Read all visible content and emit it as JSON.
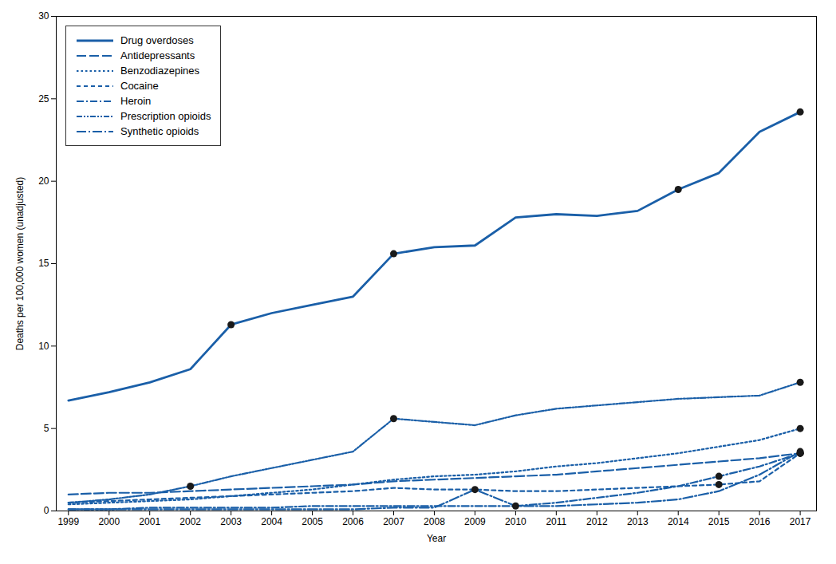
{
  "chart_data": {
    "type": "line",
    "x": [
      1999,
      2000,
      2001,
      2002,
      2003,
      2004,
      2005,
      2006,
      2007,
      2008,
      2009,
      2010,
      2011,
      2012,
      2013,
      2014,
      2015,
      2016,
      2017
    ],
    "xlabel": "Year",
    "ylabel": "Deaths per 100,000 women (unadjusted)",
    "xlim": [
      1998.7,
      2017.4
    ],
    "xticks": [
      1999,
      2000,
      2001,
      2002,
      2003,
      2004,
      2005,
      2006,
      2007,
      2008,
      2009,
      2010,
      2011,
      2012,
      2013,
      2014,
      2015,
      2016,
      2017
    ],
    "ylim": [
      0,
      30
    ],
    "yticks": [
      0,
      5,
      10,
      15,
      20,
      25,
      30
    ],
    "legend": "upper left",
    "series": [
      {
        "name": "Drug overdoses",
        "color": "#1a5fa8",
        "line_style": "solid",
        "values": [
          6.7,
          7.2,
          7.8,
          8.6,
          11.3,
          12.0,
          12.5,
          13.0,
          15.6,
          16.0,
          16.1,
          17.8,
          18.0,
          17.9,
          18.2,
          19.5,
          20.5,
          23.0,
          24.2
        ],
        "marker_points": {
          "x": [
            2003,
            2007,
            2014,
            2017
          ],
          "values": [
            11.3,
            15.6,
            19.5,
            24.2
          ],
          "color": "#1a1a1a"
        }
      },
      {
        "name": "Antidepressants",
        "color": "#1a5fa8",
        "line_style": "longdash",
        "values": [
          1.0,
          1.1,
          1.1,
          1.2,
          1.3,
          1.4,
          1.5,
          1.6,
          1.8,
          1.9,
          2.0,
          2.1,
          2.2,
          2.4,
          2.6,
          2.8,
          3.0,
          3.2,
          3.5
        ],
        "marker_points": {
          "x": [
            2017
          ],
          "values": [
            3.5
          ],
          "color": "#1a1a1a"
        }
      },
      {
        "name": "Benzodiazepines",
        "color": "#1a5fa8",
        "line_style": "dotted",
        "values": [
          0.4,
          0.5,
          0.6,
          0.7,
          0.9,
          1.1,
          1.3,
          1.6,
          1.9,
          2.1,
          2.2,
          2.4,
          2.7,
          2.9,
          3.2,
          3.5,
          3.9,
          4.3,
          5.0
        ],
        "marker_points": {
          "x": [
            2017
          ],
          "values": [
            5.0
          ],
          "color": "#1a1a1a"
        }
      },
      {
        "name": "Cocaine",
        "color": "#1a5fa8",
        "line_style": "dashed",
        "values": [
          0.5,
          0.6,
          0.7,
          0.8,
          0.9,
          1.0,
          1.1,
          1.2,
          1.4,
          1.3,
          1.3,
          1.2,
          1.2,
          1.3,
          1.4,
          1.5,
          1.6,
          1.8,
          3.5
        ],
        "marker_points": {
          "x": [
            2015,
            2017
          ],
          "values": [
            1.6,
            3.5
          ],
          "color": "#1a1a1a"
        }
      },
      {
        "name": "Heroin",
        "color": "#1a5fa8",
        "line_style": "dashdot",
        "values": [
          0.1,
          0.1,
          0.2,
          0.2,
          0.2,
          0.2,
          0.3,
          0.3,
          0.3,
          0.3,
          0.3,
          0.3,
          0.5,
          0.8,
          1.1,
          1.5,
          2.1,
          2.7,
          3.5
        ],
        "marker_points": {
          "x": [
            2015,
            2017
          ],
          "values": [
            2.1,
            3.5
          ],
          "color": "#1a1a1a"
        }
      },
      {
        "name": "Prescription opioids",
        "color": "#1a5fa8",
        "line_style": "dashdotdot",
        "values": [
          0.5,
          0.7,
          1.0,
          1.5,
          2.1,
          2.6,
          3.1,
          3.6,
          5.6,
          5.4,
          5.2,
          5.8,
          6.2,
          6.4,
          6.6,
          6.8,
          6.9,
          7.0,
          7.8
        ],
        "marker_points": {
          "x": [
            2002,
            2007,
            2017
          ],
          "values": [
            1.5,
            5.6,
            7.8
          ],
          "color": "#1a1a1a"
        }
      },
      {
        "name": "Synthetic opioids",
        "color": "#1a5fa8",
        "line_style": "longdashdot",
        "values": [
          0.1,
          0.1,
          0.1,
          0.1,
          0.1,
          0.1,
          0.1,
          0.1,
          0.2,
          0.2,
          1.3,
          0.3,
          0.3,
          0.4,
          0.5,
          0.7,
          1.2,
          2.2,
          3.6
        ],
        "marker_points": {
          "x": [
            2009,
            2010,
            2017
          ],
          "values": [
            1.3,
            0.3,
            3.6
          ],
          "color": "#1a1a1a"
        }
      }
    ]
  }
}
